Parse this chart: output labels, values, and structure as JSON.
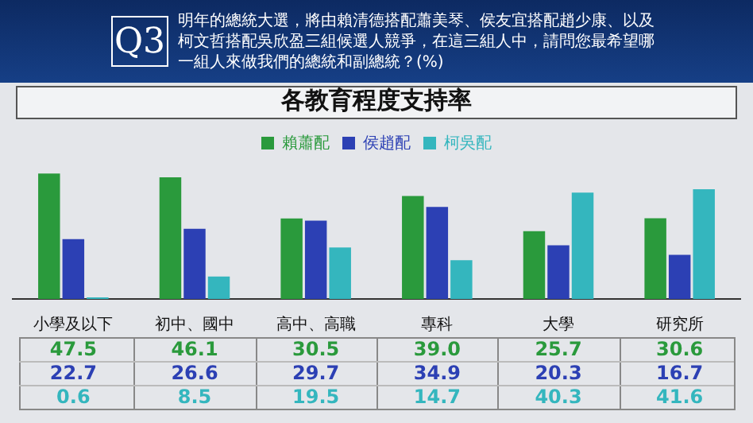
{
  "chart_data": {
    "type": "bar",
    "title": "各教育程度支持率",
    "subtitle": "明年的總統大選，將由賴清德搭配蕭美琴、侯友宜搭配趙少康、以及柯文哲搭配吳欣盈三組候選人競爭，在這三組人中，請問您最希望哪一組人來做我們的總統和副總統？(%)",
    "annotations": [
      "Q3"
    ],
    "categories": [
      "小學及以下",
      "初中、國中",
      "高中、高職",
      "專科",
      "大學",
      "研究所"
    ],
    "series": [
      {
        "name": "賴蕭配",
        "color": "#2a9a3c",
        "values": [
          47.5,
          46.1,
          30.5,
          39.0,
          25.7,
          30.6
        ],
        "value_labels": [
          "47.5",
          "46.1",
          "30.5",
          "39.0",
          "25.7",
          "30.6"
        ]
      },
      {
        "name": "侯趙配",
        "color": "#2c40b4",
        "values": [
          22.7,
          26.6,
          29.7,
          34.9,
          20.3,
          16.7
        ],
        "value_labels": [
          "22.7",
          "26.6",
          "29.7",
          "34.9",
          "20.3",
          "16.7"
        ]
      },
      {
        "name": "柯吳配",
        "color": "#34b6be",
        "values": [
          0.6,
          8.5,
          19.5,
          14.7,
          40.3,
          41.6
        ],
        "value_labels": [
          "0.6",
          "8.5",
          "19.5",
          "14.7",
          "40.3",
          "41.6"
        ]
      }
    ],
    "legend": "top",
    "tick_labels": "x"
  }
}
